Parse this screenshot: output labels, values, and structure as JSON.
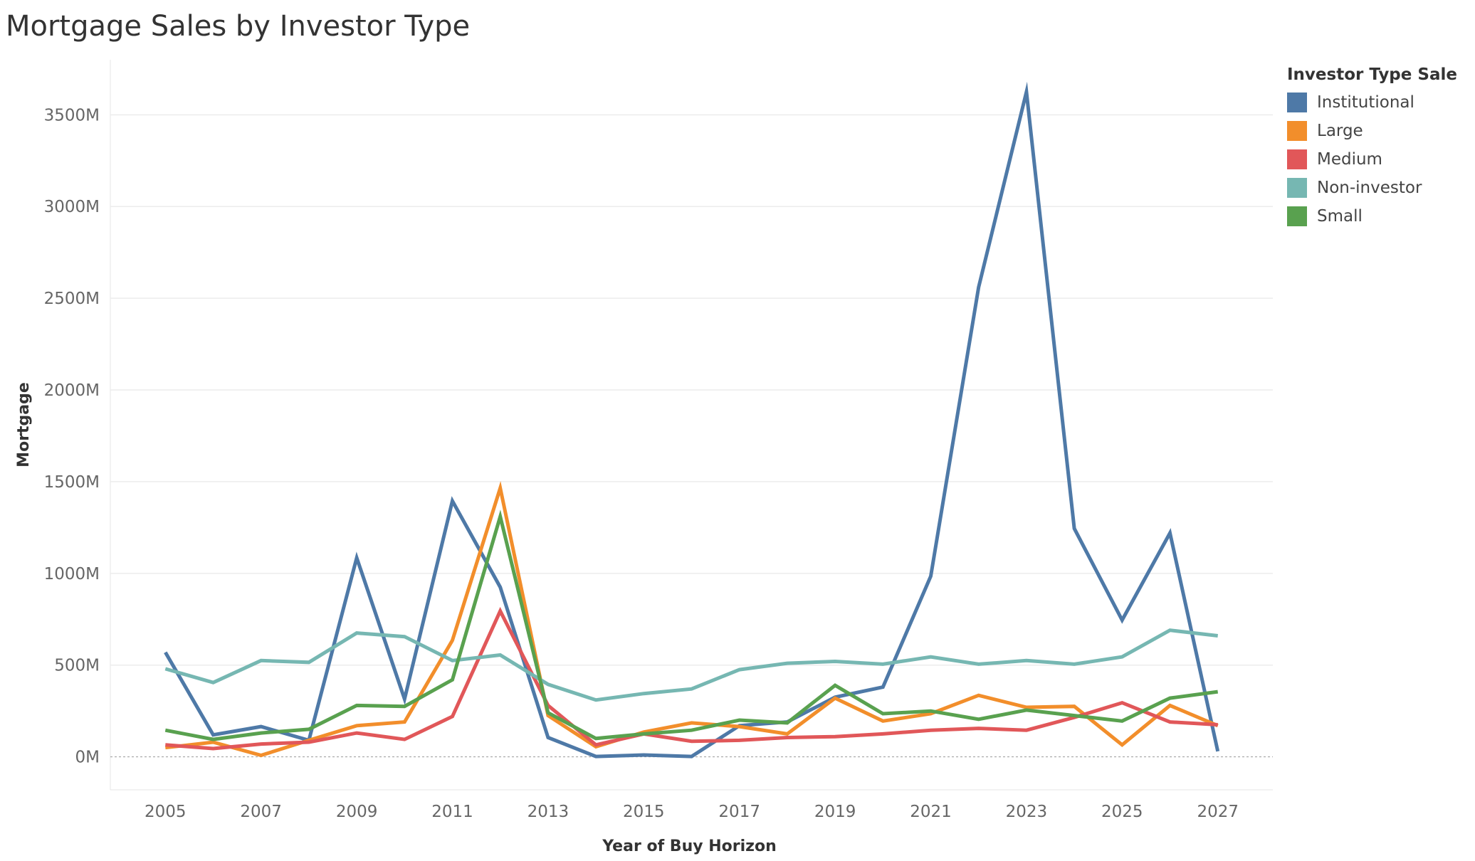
{
  "chart_data": {
    "type": "line",
    "title": "Mortgage Sales by Investor Type",
    "xlabel": "Year of Buy Horizon",
    "ylabel": "Mortgage",
    "x": [
      2005,
      2006,
      2007,
      2008,
      2009,
      2010,
      2011,
      2012,
      2013,
      2014,
      2015,
      2016,
      2017,
      2018,
      2019,
      2020,
      2021,
      2022,
      2023,
      2024,
      2025,
      2026,
      2027
    ],
    "xlim": [
      2003.85,
      2028.15
    ],
    "x_ticks": [
      "2005",
      "2007",
      "2009",
      "2011",
      "2013",
      "2015",
      "2017",
      "2019",
      "2021",
      "2023",
      "2025",
      "2027"
    ],
    "ylim": [
      -180,
      3800
    ],
    "y_ticks": [
      "0M",
      "500M",
      "1000M",
      "1500M",
      "2000M",
      "2500M",
      "3000M",
      "3500M"
    ],
    "y_unit": "M",
    "grid": true,
    "legend": {
      "title": "Investor Type Sale",
      "position": "right"
    },
    "series": [
      {
        "name": "Institutional",
        "color": "#4e79a7",
        "values": [
          570,
          120,
          165,
          90,
          1085,
          315,
          1395,
          925,
          105,
          2,
          10,
          2,
          170,
          190,
          325,
          380,
          985,
          2560,
          3625,
          1245,
          745,
          1220,
          30
        ]
      },
      {
        "name": "Large",
        "color": "#f28e2b",
        "values": [
          50,
          80,
          8,
          90,
          170,
          190,
          635,
          1465,
          225,
          55,
          135,
          185,
          165,
          125,
          320,
          195,
          235,
          335,
          270,
          275,
          65,
          280,
          170
        ]
      },
      {
        "name": "Medium",
        "color": "#e15759",
        "values": [
          65,
          45,
          70,
          80,
          130,
          95,
          220,
          795,
          280,
          65,
          125,
          85,
          90,
          105,
          110,
          125,
          145,
          155,
          145,
          215,
          295,
          190,
          175
        ]
      },
      {
        "name": "Non-investor",
        "color": "#76b7b2",
        "values": [
          480,
          405,
          525,
          515,
          675,
          655,
          525,
          555,
          395,
          310,
          345,
          370,
          475,
          510,
          520,
          505,
          545,
          505,
          525,
          505,
          545,
          690,
          660
        ]
      },
      {
        "name": "Small",
        "color": "#59a14f",
        "values": [
          145,
          95,
          130,
          150,
          280,
          275,
          420,
          1310,
          240,
          100,
          125,
          145,
          200,
          185,
          390,
          235,
          250,
          205,
          255,
          225,
          195,
          320,
          355
        ]
      }
    ]
  }
}
